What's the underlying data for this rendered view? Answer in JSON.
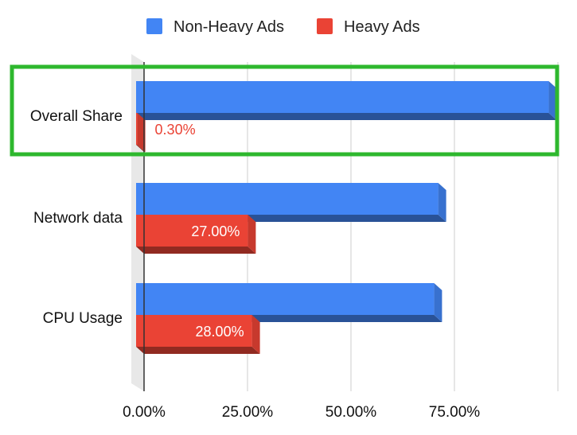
{
  "chart_data": {
    "type": "bar",
    "orientation": "horizontal",
    "style": "3d",
    "title": "",
    "xlabel": "",
    "ylabel": "",
    "categories": [
      "Overall Share",
      "Network data",
      "CPU Usage"
    ],
    "series": [
      {
        "name": "Non-Heavy Ads",
        "color": "#4285f4",
        "values": [
          99.7,
          73.0,
          72.0
        ]
      },
      {
        "name": "Heavy Ads",
        "color": "#ea4335",
        "values": [
          0.3,
          27.0,
          28.0
        ],
        "labels": [
          "0.30%",
          "27.00%",
          "28.00%"
        ]
      }
    ],
    "xlim": [
      0,
      100
    ],
    "ticks": [
      0,
      25,
      50,
      75
    ],
    "tick_labels": [
      "0.00%",
      "25.00%",
      "50.00%",
      "75.00%"
    ],
    "legend_position": "top",
    "grid": true,
    "highlight": {
      "category": "Overall Share",
      "color": "#2eb82e"
    }
  }
}
